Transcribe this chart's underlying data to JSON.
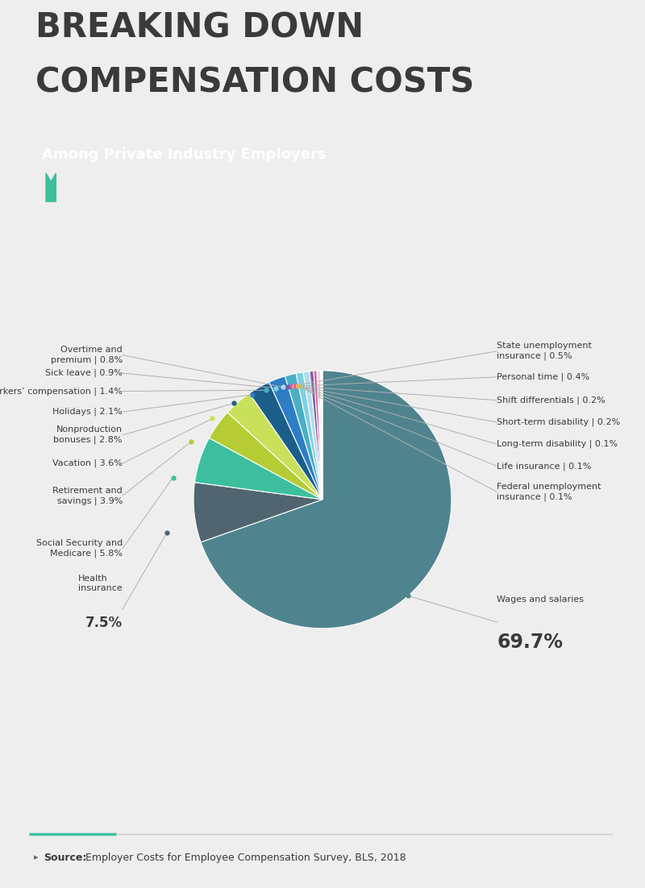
{
  "title_line1": "BREAKING DOWN",
  "title_line2": "COMPENSATION COSTS",
  "subtitle": "Among Private Industry Employers",
  "source_bold": "Source:",
  "source_rest": " Employer Costs for Employee Compensation Survey, BLS, 2018",
  "bg_color": "#eeeeee",
  "chart_bg": "#ffffff",
  "title_color": "#3a3a3a",
  "subtitle_bg": "#3dbf9e",
  "subtitle_color": "#ffffff",
  "slices": [
    {
      "label": "Wages and salaries",
      "value": 69.7,
      "color": "#4f848e"
    },
    {
      "label": "Health insurance",
      "value": 7.5,
      "color": "#516571"
    },
    {
      "label": "Social Security and\nMedicare",
      "value": 5.8,
      "color": "#3dbf9e"
    },
    {
      "label": "Retirement and\nsavings",
      "value": 3.9,
      "color": "#b5cc35"
    },
    {
      "label": "Vacation",
      "value": 3.6,
      "color": "#c9e05a"
    },
    {
      "label": "Nonproduction\nbonuses",
      "value": 2.8,
      "color": "#1b5e8a"
    },
    {
      "label": "Holidays",
      "value": 2.1,
      "color": "#2d7ec4"
    },
    {
      "label": "Workers’ compensation",
      "value": 1.4,
      "color": "#4aafc4"
    },
    {
      "label": "Sick leave",
      "value": 0.9,
      "color": "#7ecfe0"
    },
    {
      "label": "Overtime and\npremium",
      "value": 0.8,
      "color": "#b0dcea"
    },
    {
      "label": "State unemployment\ninsurance",
      "value": 0.5,
      "color": "#7b5ea7"
    },
    {
      "label": "Personal time",
      "value": 0.4,
      "color": "#d45fa0"
    },
    {
      "label": "Shift differentials",
      "value": 0.2,
      "color": "#e8a0b8"
    },
    {
      "label": "Short-term disability",
      "value": 0.2,
      "color": "#e05060"
    },
    {
      "label": "Long-term disability",
      "value": 0.1,
      "color": "#f0a898"
    },
    {
      "label": "Life insurance",
      "value": 0.1,
      "color": "#d4c890"
    },
    {
      "label": "Federal unemployment\ninsurance",
      "value": 0.1,
      "color": "#c8c050"
    }
  ]
}
